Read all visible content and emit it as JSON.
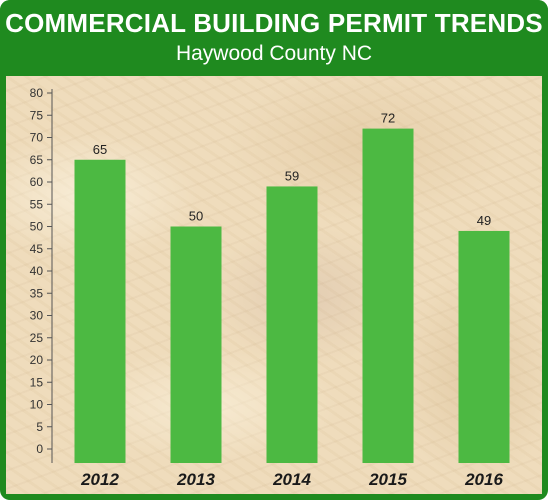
{
  "header": {
    "title": "COMMERCIAL BUILDING PERMIT TRENDS",
    "subtitle": "Haywood County NC"
  },
  "colors": {
    "frame": "#1f8a1f",
    "bar": "#4cb942",
    "background": "#efdcbc"
  },
  "chart_data": {
    "type": "bar",
    "title": "COMMERCIAL BUILDING PERMIT TRENDS",
    "subtitle": "Haywood County NC",
    "categories": [
      "2012",
      "2013",
      "2014",
      "2015",
      "2016"
    ],
    "values": [
      65,
      50,
      59,
      72,
      49
    ],
    "value_labels": [
      "65",
      "50",
      "59",
      "72",
      "49"
    ],
    "ylim": [
      0,
      80
    ],
    "yticks": [
      0,
      5,
      10,
      15,
      20,
      25,
      30,
      35,
      40,
      45,
      50,
      55,
      60,
      65,
      70,
      75,
      80
    ],
    "ytick_labels": [
      "0",
      "5",
      "10",
      "15",
      "20",
      "25",
      "30",
      "35",
      "40",
      "45",
      "50",
      "55",
      "60",
      "65",
      "70",
      "75",
      "80"
    ],
    "xlabel": "",
    "ylabel": "",
    "grid": false,
    "legend": "none"
  }
}
